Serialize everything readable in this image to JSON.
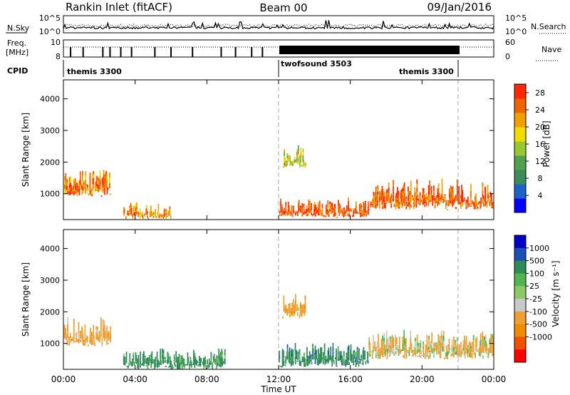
{
  "header": {
    "station": "Rankin Inlet (fitACF)",
    "beam": "Beam 00",
    "date": "09/Jan/2016"
  },
  "nsky": {
    "label": "N.Sky",
    "ticks_left": [
      "10^5",
      "10^0"
    ],
    "ticks_right": [
      "10^5",
      "10^0"
    ],
    "right_label": "N.Search"
  },
  "freq": {
    "label_line1": "Freq.",
    "label_line2": "[MHz]",
    "ticks_left": [
      "10",
      "8"
    ],
    "ticks_right": [
      "60",
      "0"
    ],
    "right_label": "Nave"
  },
  "cpid": {
    "label": "CPID",
    "modes": [
      {
        "name": "themis 3300",
        "start_hr": 0,
        "end_hr": 12
      },
      {
        "name": "twofsound 3503",
        "start_hr": 12,
        "end_hr": 22
      },
      {
        "name": "themis 3300",
        "start_hr": 22,
        "end_hr": 24
      }
    ]
  },
  "colors": {
    "power_scale": [
      "#0000ff",
      "#1e64c8",
      "#3c8c5a",
      "#50a050",
      "#96c832",
      "#f0dc00",
      "#f0a000",
      "#f06400",
      "#ff2800"
    ],
    "velocity_scale": [
      "#0000c8",
      "#1e50b4",
      "#2e8b57",
      "#50b450",
      "#8cc864",
      "#c8c8c8",
      "#f0a032",
      "#f08c00",
      "#f05000",
      "#ff0000"
    ]
  },
  "chart_data": [
    {
      "type": "heatmap",
      "panel": "power",
      "xlabel": "",
      "ylabel": "Slant Range [km]",
      "xlim_hours": [
        0,
        24
      ],
      "x_ticks": [],
      "ylim_km": [
        180,
        4600
      ],
      "y_ticks": [
        1000,
        2000,
        3000,
        4000
      ],
      "colorbar": {
        "label": "Power [dB]",
        "ticks": [
          4,
          8,
          12,
          16,
          20,
          24,
          28
        ],
        "range": [
          0,
          30
        ]
      },
      "features": [
        {
          "start_hr": 0.0,
          "end_hr": 2.6,
          "range_km": [
            900,
            1900
          ],
          "level": 24
        },
        {
          "start_hr": 3.3,
          "end_hr": 4.2,
          "range_km": [
            180,
            800
          ],
          "level": 24
        },
        {
          "start_hr": 4.2,
          "end_hr": 6.0,
          "range_km": [
            200,
            700
          ],
          "level": 22
        },
        {
          "start_hr": 12.0,
          "end_hr": 17.0,
          "range_km": [
            250,
            900
          ],
          "level": 26
        },
        {
          "start_hr": 17.0,
          "end_hr": 24.0,
          "range_km": [
            500,
            1500
          ],
          "level": 26
        },
        {
          "start_hr": 12.2,
          "end_hr": 13.5,
          "range_km": [
            1800,
            2600
          ],
          "level": 18
        }
      ]
    },
    {
      "type": "heatmap",
      "panel": "velocity",
      "xlabel": "Time UT",
      "ylabel": "Slant Range [km]",
      "xlim_hours": [
        0,
        24
      ],
      "x_ticks": [
        "00:00",
        "04:00",
        "08:00",
        "12:00",
        "16:00",
        "20:00",
        "00:00"
      ],
      "ylim_km": [
        180,
        4600
      ],
      "y_ticks": [
        1000,
        2000,
        3000,
        4000
      ],
      "colorbar": {
        "label": "Velocity [m s⁻¹]",
        "ticks": [
          "1000",
          "500",
          "100",
          "25",
          "-25",
          "-100",
          "-500",
          "-1000"
        ]
      },
      "features": [
        {
          "start_hr": 0.0,
          "end_hr": 2.6,
          "range_km": [
            900,
            1900
          ],
          "velocity": -300
        },
        {
          "start_hr": 3.3,
          "end_hr": 9.0,
          "range_km": [
            180,
            900
          ],
          "velocity": 250
        },
        {
          "start_hr": 12.0,
          "end_hr": 17.0,
          "range_km": [
            250,
            1100
          ],
          "velocity": 300
        },
        {
          "start_hr": 17.0,
          "end_hr": 24.0,
          "range_km": [
            500,
            1500
          ],
          "velocity": -150
        },
        {
          "start_hr": 12.2,
          "end_hr": 13.5,
          "range_km": [
            1800,
            2600
          ],
          "velocity": -400
        }
      ]
    }
  ]
}
